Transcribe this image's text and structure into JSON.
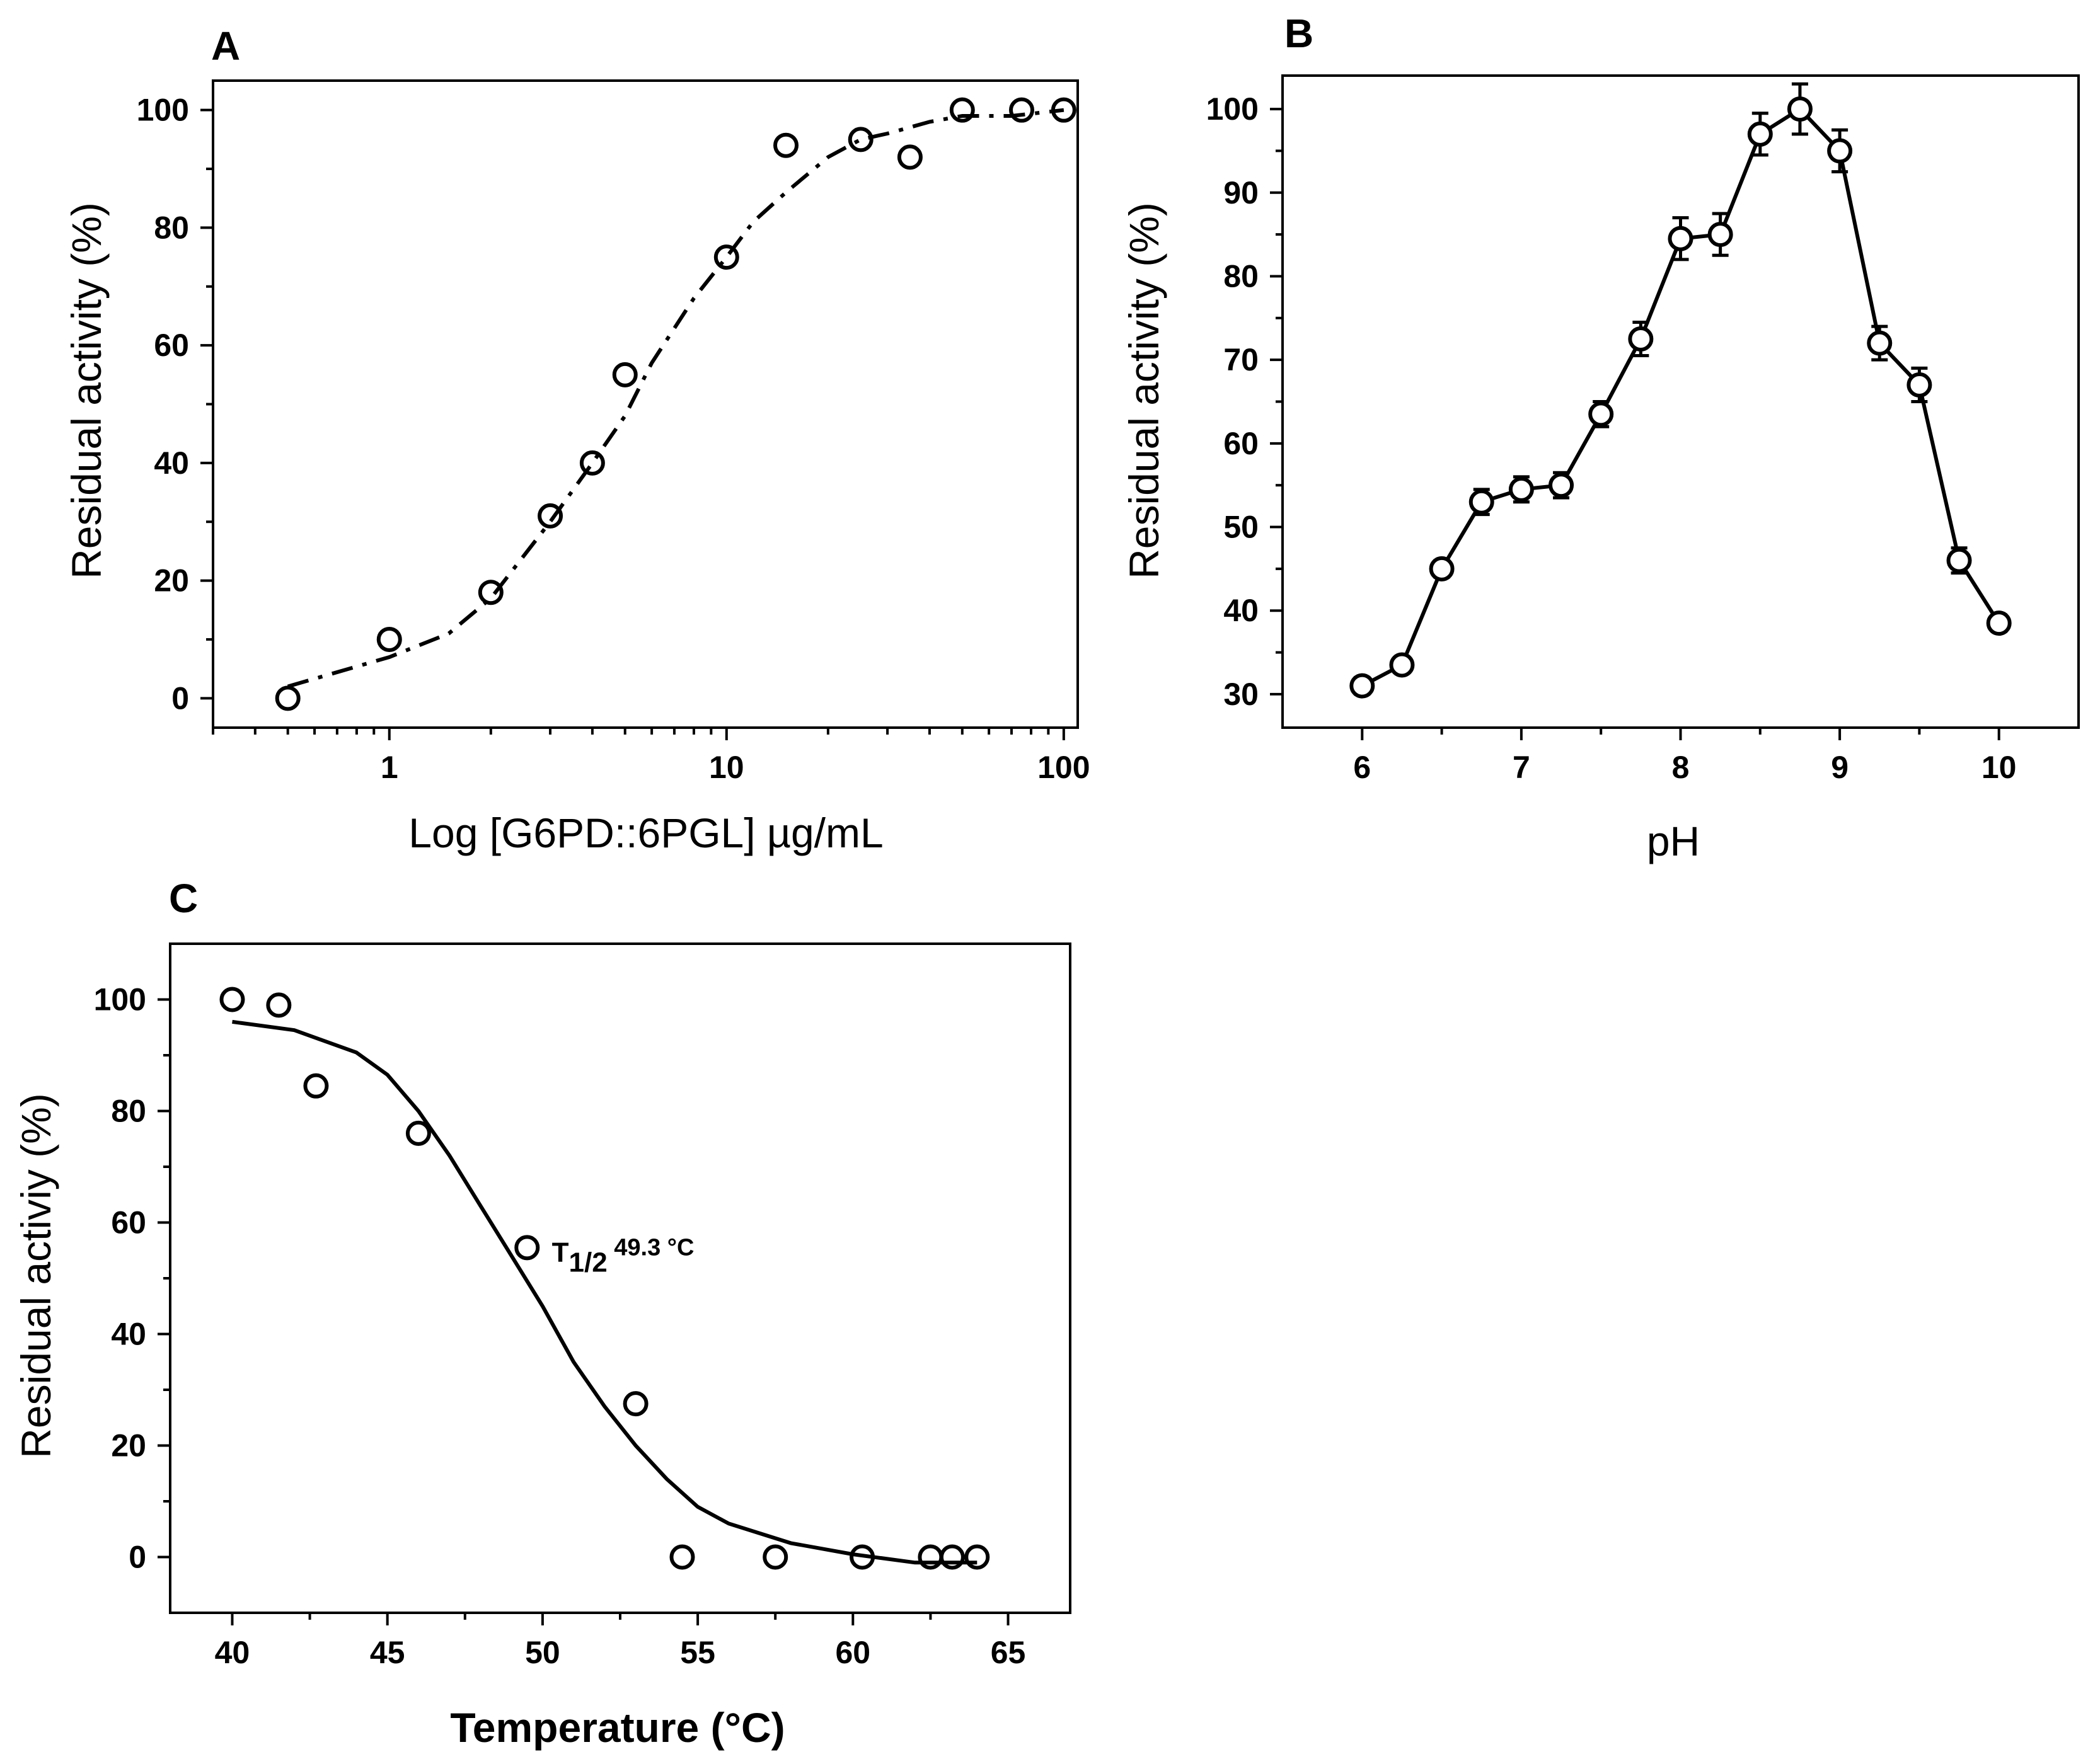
{
  "chart_data": [
    {
      "panel": "A",
      "type": "scatter",
      "xscale": "log",
      "xlabel": "Log [G6PD::6PGL] µg/mL",
      "ylabel": "Residual activity (%)",
      "xlim": [
        0.3,
        110
      ],
      "ylim": [
        -5,
        105
      ],
      "xticks": [
        1,
        10,
        100
      ],
      "xtick_labels": [
        "1",
        "10",
        "100"
      ],
      "yticks": [
        0,
        20,
        40,
        60,
        80,
        100
      ],
      "ytick_labels": [
        "0",
        "20",
        "40",
        "60",
        "80",
        "100"
      ],
      "series": [
        {
          "name": "data",
          "style": "markers",
          "x": [
            0.5,
            1,
            2,
            3,
            4,
            5,
            10,
            15,
            25,
            35,
            50,
            75,
            100
          ],
          "y": [
            0,
            10,
            18,
            31,
            40,
            55,
            75,
            94,
            95,
            92,
            100,
            100,
            100
          ]
        },
        {
          "name": "fit",
          "style": "dash-dot",
          "x": [
            0.5,
            1,
            1.5,
            2,
            3,
            4,
            5,
            6,
            8,
            10,
            12,
            15,
            20,
            25,
            30,
            40,
            50,
            70,
            100
          ],
          "y": [
            2,
            7,
            11,
            17,
            30,
            40,
            48,
            57,
            68,
            75,
            81,
            86,
            92,
            95,
            96,
            98,
            99,
            99,
            100
          ]
        }
      ]
    },
    {
      "panel": "B",
      "type": "line",
      "xlabel": "pH",
      "ylabel": "Residual activity (%)",
      "xlim": [
        5.5,
        10.5
      ],
      "ylim": [
        26,
        104
      ],
      "xticks": [
        6,
        7,
        8,
        9,
        10
      ],
      "xtick_labels": [
        "6",
        "7",
        "8",
        "9",
        "10"
      ],
      "yticks": [
        30,
        40,
        50,
        60,
        70,
        80,
        90,
        100
      ],
      "ytick_labels": [
        "30",
        "40",
        "50",
        "60",
        "70",
        "80",
        "90",
        "100"
      ],
      "series": [
        {
          "name": "data",
          "style": "line+markers",
          "x": [
            6,
            6.25,
            6.5,
            6.75,
            7,
            7.25,
            7.5,
            7.75,
            8,
            8.25,
            8.5,
            8.75,
            9,
            9.25,
            9.5,
            9.75,
            10
          ],
          "y": [
            31,
            33.5,
            45,
            53,
            54.5,
            55,
            63.5,
            72.5,
            84.5,
            85,
            97,
            100,
            95,
            72,
            67,
            46,
            38.5
          ],
          "err": [
            1,
            0.8,
            1,
            1.5,
            1.5,
            1.5,
            1.5,
            2,
            2.5,
            2.5,
            2.5,
            3,
            2.5,
            2,
            2,
            1.5,
            1
          ]
        }
      ]
    },
    {
      "panel": "C",
      "type": "scatter",
      "xlabel": "Temperature (°C)",
      "ylabel": "Residual activiy (%)",
      "xlim": [
        38,
        67
      ],
      "ylim": [
        -10,
        110
      ],
      "xticks": [
        40,
        45,
        50,
        55,
        60,
        65
      ],
      "xtick_labels": [
        "40",
        "45",
        "50",
        "55",
        "60",
        "65"
      ],
      "yticks": [
        0,
        20,
        40,
        60,
        80,
        100
      ],
      "ytick_labels": [
        "0",
        "20",
        "40",
        "60",
        "80",
        "100"
      ],
      "series": [
        {
          "name": "data",
          "style": "markers",
          "x": [
            40,
            41.5,
            42.7,
            46,
            49.5,
            53,
            54.5,
            57.5,
            60.3,
            62.5,
            63.2,
            64
          ],
          "y": [
            100,
            99,
            84.5,
            76,
            55.5,
            27.5,
            0,
            0,
            0,
            0,
            0,
            0
          ]
        },
        {
          "name": "fit",
          "style": "solid",
          "x": [
            40,
            42,
            44,
            45,
            46,
            47,
            48,
            49,
            50,
            51,
            52,
            53,
            54,
            55,
            56,
            58,
            60,
            62,
            64
          ],
          "y": [
            96,
            94.5,
            90.5,
            86.5,
            80,
            72,
            63,
            54,
            45,
            35,
            27,
            20,
            14,
            9,
            6,
            2.5,
            0.5,
            -1,
            -1
          ]
        }
      ],
      "annotation": {
        "main": "T",
        "sub": "1/2",
        "value": "49.3 °C",
        "x": 50.3,
        "y": 53
      }
    }
  ],
  "panel_labels": {
    "a": "A",
    "b": "B",
    "c": "C"
  }
}
